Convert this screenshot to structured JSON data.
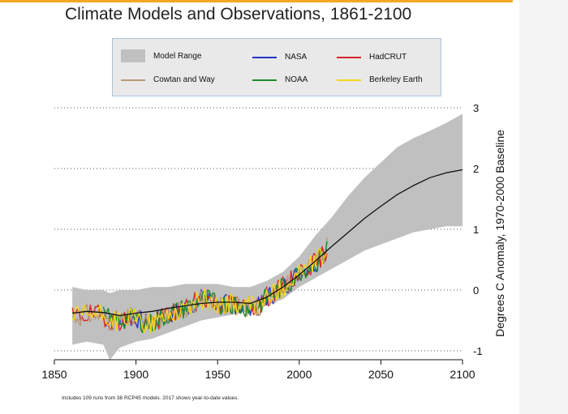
{
  "chart_data": {
    "type": "line",
    "title": "Climate Models and Observations, 1861-2100",
    "xlabel": "",
    "ylabel": "Degrees C Anomaly, 1970-2000 Baseline",
    "xlim": [
      1850,
      2100
    ],
    "ylim": [
      -1,
      3
    ],
    "x_ticks": [
      1850,
      1900,
      1950,
      2000,
      2050,
      2100
    ],
    "y_ticks": [
      -1,
      0,
      1,
      2,
      3
    ],
    "grid": "dotted horizontal",
    "legend_position": "top",
    "model_range": {
      "name": "Model Range",
      "color": "#c0c0c0",
      "x": [
        1861,
        1870,
        1880,
        1884,
        1890,
        1900,
        1910,
        1920,
        1930,
        1940,
        1950,
        1960,
        1970,
        1980,
        1990,
        2000,
        2010,
        2020,
        2030,
        2040,
        2050,
        2060,
        2070,
        2080,
        2090,
        2100
      ],
      "upper": [
        0.05,
        0.0,
        0.0,
        -0.05,
        0.0,
        0.0,
        0.05,
        0.05,
        0.1,
        0.1,
        0.1,
        0.05,
        0.05,
        0.15,
        0.3,
        0.55,
        0.9,
        1.2,
        1.55,
        1.85,
        2.1,
        2.35,
        2.5,
        2.62,
        2.75,
        2.9
      ],
      "lower": [
        -0.9,
        -0.85,
        -0.9,
        -1.15,
        -0.95,
        -0.85,
        -0.8,
        -0.7,
        -0.6,
        -0.5,
        -0.45,
        -0.4,
        -0.35,
        -0.25,
        -0.15,
        0.05,
        0.2,
        0.35,
        0.5,
        0.65,
        0.75,
        0.85,
        0.95,
        1.0,
        1.05,
        1.05
      ]
    },
    "model_mean": {
      "name": "Model mean",
      "color": "#111111",
      "x": [
        1861,
        1870,
        1880,
        1890,
        1900,
        1910,
        1920,
        1930,
        1940,
        1950,
        1960,
        1970,
        1980,
        1990,
        2000,
        2010,
        2020,
        2030,
        2040,
        2050,
        2060,
        2070,
        2080,
        2090,
        2100
      ],
      "values": [
        -0.38,
        -0.35,
        -0.37,
        -0.42,
        -0.38,
        -0.35,
        -0.3,
        -0.26,
        -0.22,
        -0.2,
        -0.2,
        -0.22,
        -0.12,
        0.05,
        0.25,
        0.48,
        0.72,
        0.95,
        1.18,
        1.38,
        1.57,
        1.72,
        1.85,
        1.93,
        1.98
      ]
    },
    "series": [
      {
        "name": "NASA",
        "color": "#2236c4",
        "start": 1880,
        "end": 2017,
        "seed": 7
      },
      {
        "name": "HadCRUT",
        "color": "#d9252b",
        "start": 1861,
        "end": 2017,
        "seed": 19
      },
      {
        "name": "Cowtan and Way",
        "color": "#b89a78",
        "start": 1861,
        "end": 2017,
        "seed": 31
      },
      {
        "name": "NOAA",
        "color": "#1f8a2a",
        "start": 1880,
        "end": 2017,
        "seed": 43
      },
      {
        "name": "Berkeley Earth",
        "color": "#f4d51a",
        "start": 1861,
        "end": 2017,
        "seed": 57
      }
    ],
    "obs_trend": {
      "x": [
        1861,
        1870,
        1880,
        1885,
        1890,
        1900,
        1905,
        1910,
        1920,
        1930,
        1940,
        1945,
        1950,
        1960,
        1965,
        1970,
        1975,
        1980,
        1985,
        1990,
        1995,
        2000,
        2005,
        2010,
        2015,
        2017
      ],
      "values": [
        -0.45,
        -0.4,
        -0.42,
        -0.5,
        -0.5,
        -0.45,
        -0.55,
        -0.55,
        -0.4,
        -0.3,
        -0.15,
        -0.15,
        -0.25,
        -0.22,
        -0.3,
        -0.25,
        -0.28,
        -0.12,
        -0.05,
        0.05,
        0.15,
        0.3,
        0.38,
        0.45,
        0.58,
        0.7
      ]
    }
  },
  "legend": {
    "items": [
      {
        "label": "Model Range"
      },
      {
        "label": "NASA"
      },
      {
        "label": "HadCRUT"
      },
      {
        "label": "Cowtan and Way"
      },
      {
        "label": "NOAA"
      },
      {
        "label": "Berkeley Earth"
      }
    ]
  },
  "footnote": "Includes 109 runs from 38 RCP45 models. 2017 shows year-to-date values."
}
